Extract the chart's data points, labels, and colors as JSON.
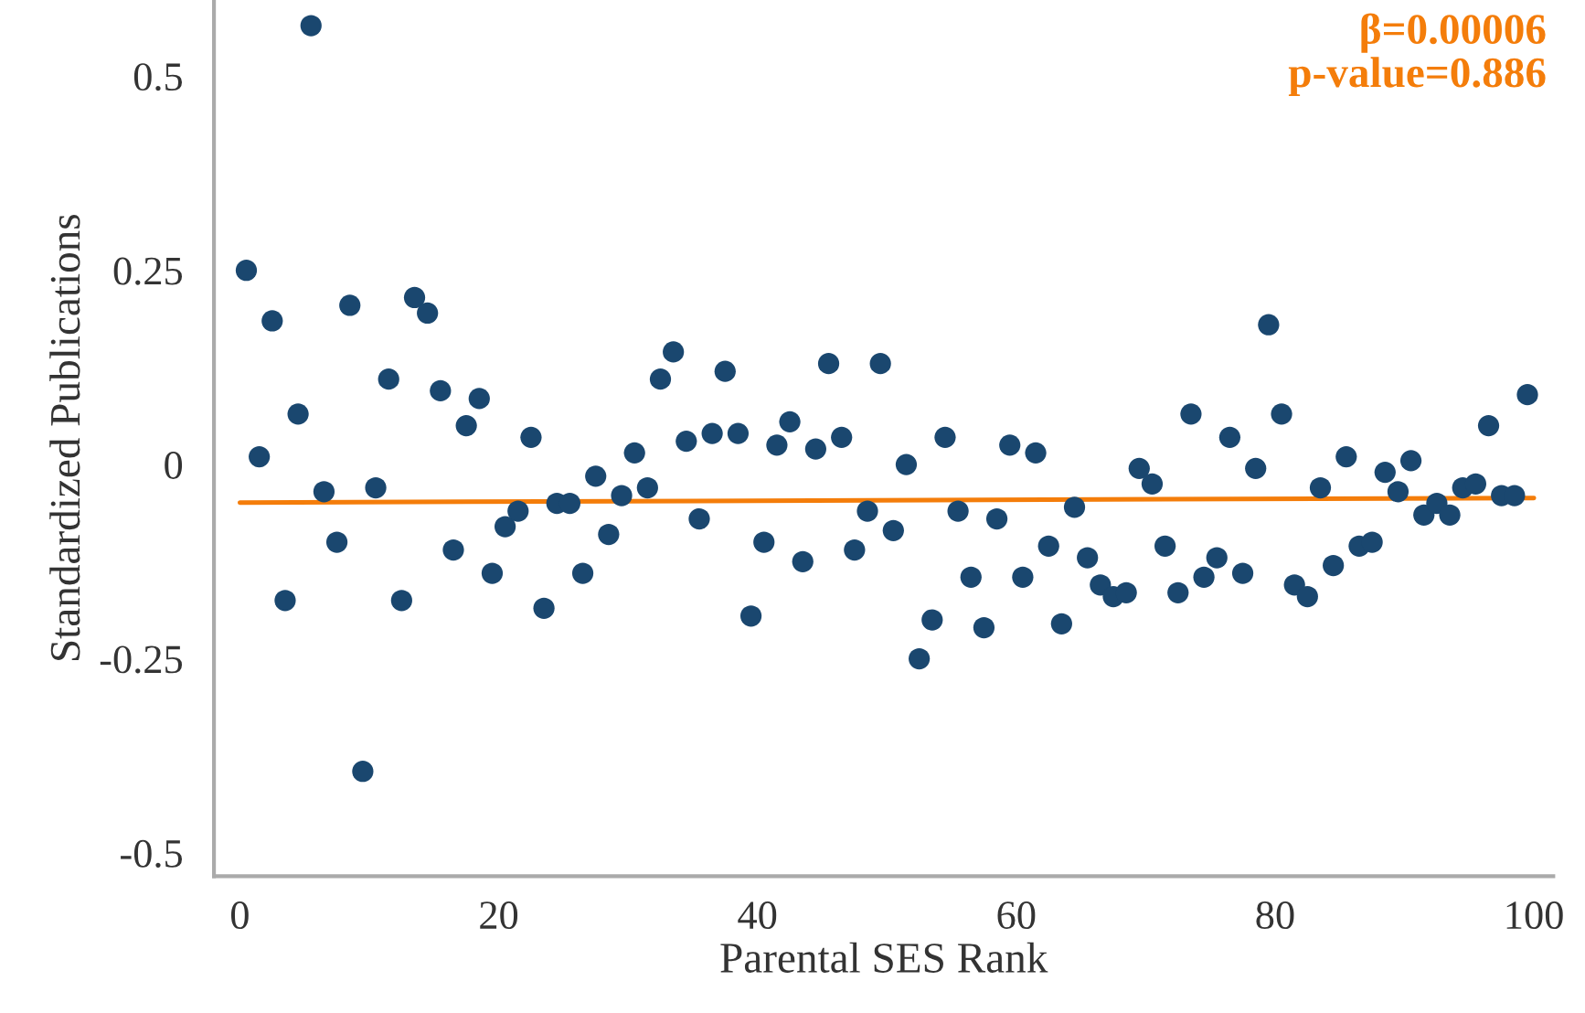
{
  "chart_data": {
    "type": "scatter",
    "xlabel": "Parental SES Rank",
    "ylabel": "Standardized Publications",
    "annotations": [
      "β=0.00006",
      "p-value=0.886"
    ],
    "xlim": [
      -2,
      101.5
    ],
    "ylim": [
      -0.53,
      0.598
    ],
    "xticks": [
      0,
      20,
      40,
      60,
      80,
      100
    ],
    "yticks": [
      -0.5,
      -0.25,
      0,
      0.25,
      0.5
    ],
    "grid": false,
    "marker": "circle",
    "legend": false,
    "series": [
      {
        "color": "#1a476f",
        "x": [
          0.5,
          1.5,
          2.5,
          3.5,
          4.5,
          5.5,
          6.5,
          7.5,
          8.5,
          9.5,
          10.5,
          11.5,
          12.5,
          13.5,
          14.5,
          15.5,
          16.5,
          17.5,
          18.5,
          19.5,
          20.5,
          21.5,
          22.5,
          23.5,
          24.5,
          25.5,
          26.5,
          27.5,
          28.5,
          29.5,
          30.5,
          31.5,
          32.5,
          33.5,
          34.5,
          35.5,
          36.5,
          37.5,
          38.5,
          39.5,
          40.5,
          41.5,
          42.5,
          43.5,
          44.5,
          45.5,
          46.5,
          47.5,
          48.5,
          49.5,
          50.5,
          51.5,
          52.5,
          53.5,
          54.5,
          55.5,
          56.5,
          57.5,
          58.5,
          59.5,
          60.5,
          61.5,
          62.5,
          63.5,
          64.5,
          65.5,
          66.5,
          67.5,
          68.5,
          69.5,
          70.5,
          71.5,
          72.5,
          73.5,
          74.5,
          75.5,
          76.5,
          77.5,
          78.5,
          79.5,
          80.5,
          81.5,
          82.5,
          83.5,
          84.5,
          85.5,
          86.5,
          87.5,
          88.5,
          89.5,
          90.5,
          91.5,
          92.5,
          93.5,
          94.5,
          95.5,
          96.5,
          97.5,
          98.5,
          99.5
        ],
        "values": [
          0.25,
          0.01,
          0.185,
          -0.175,
          0.065,
          0.565,
          -0.035,
          -0.1,
          0.205,
          -0.395,
          -0.03,
          0.11,
          -0.175,
          0.215,
          0.195,
          0.095,
          -0.11,
          0.05,
          0.085,
          -0.14,
          -0.08,
          -0.06,
          0.035,
          -0.185,
          -0.05,
          -0.05,
          -0.14,
          -0.015,
          -0.09,
          -0.04,
          0.015,
          -0.03,
          0.11,
          0.145,
          0.03,
          -0.07,
          0.04,
          0.12,
          0.04,
          -0.195,
          -0.1,
          0.025,
          0.055,
          -0.125,
          0.02,
          0.13,
          0.035,
          -0.11,
          -0.06,
          0.13,
          -0.085,
          0,
          -0.25,
          -0.2,
          0.035,
          -0.06,
          -0.145,
          -0.21,
          -0.07,
          0.025,
          -0.145,
          0.015,
          -0.105,
          -0.205,
          -0.055,
          -0.12,
          -0.155,
          -0.17,
          -0.165,
          -0.005,
          -0.025,
          -0.105,
          -0.165,
          0.065,
          -0.145,
          -0.12,
          0.035,
          -0.14,
          -0.005,
          0.18,
          0.065,
          -0.155,
          -0.17,
          -0.03,
          -0.13,
          0.01,
          -0.105,
          -0.1,
          -0.01,
          -0.035,
          0.005,
          -0.065,
          -0.05,
          -0.065,
          -0.03,
          -0.025,
          0.05,
          -0.04,
          -0.04,
          0.09
        ]
      },
      {
        "type": "line",
        "color": "#f47d0a",
        "marker": "none",
        "line_style": "solid",
        "x": [
          0,
          100
        ],
        "values": [
          -0.049,
          -0.043
        ]
      }
    ]
  }
}
